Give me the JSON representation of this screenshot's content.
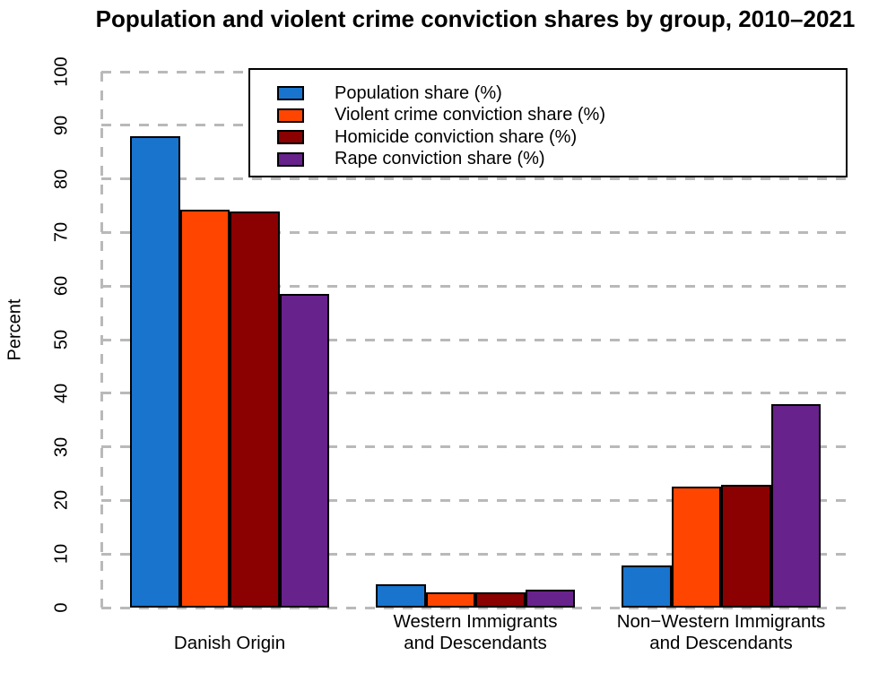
{
  "chart_data": {
    "type": "bar",
    "title": "Population and violent crime conviction shares by group, 2010–2021",
    "categories": [
      "Danish Origin",
      "Western Immigrants and Descendants",
      "Non−Western Immigrants and Descendants"
    ],
    "category_label_lines": [
      [
        "Danish Origin"
      ],
      [
        "Western Immigrants",
        "and Descendants"
      ],
      [
        "Non−Western Immigrants",
        "and Descendants"
      ]
    ],
    "series": [
      {
        "name": "Population share (%)",
        "color": "#1874CD",
        "values": [
          88.0,
          4.3,
          7.8
        ]
      },
      {
        "name": "Violent crime conviction share (%)",
        "color": "#FF4500",
        "values": [
          74.3,
          2.9,
          22.6
        ]
      },
      {
        "name": "Homicide conviction share (%)",
        "color": "#8B0000",
        "values": [
          73.9,
          2.9,
          22.9
        ]
      },
      {
        "name": "Rape conviction share (%)",
        "color": "#68228B",
        "values": [
          58.6,
          3.4,
          37.9
        ]
      }
    ],
    "xlabel": "",
    "ylabel": "Percent",
    "ylim": [
      0,
      100
    ],
    "yticks": [
      0,
      10,
      20,
      30,
      40,
      50,
      60,
      70,
      80,
      90,
      100
    ],
    "grid": "horizontal-dashed",
    "legend_position": "top-inside",
    "colors": {
      "grid": "#B9B9B9",
      "bar_border": "#000000",
      "background": "#FFFFFF",
      "text": "#000000"
    }
  }
}
